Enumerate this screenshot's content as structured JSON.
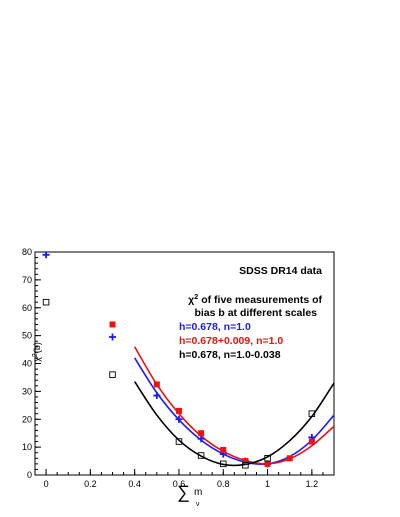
{
  "chart_data": {
    "type": "scatter",
    "title": "SDSS DR14 data",
    "subtitle_line1": "of five measurements of",
    "subtitle_chi_symbol": "χ",
    "subtitle_chi_exp": "2",
    "subtitle_line2": "bias b at different scales",
    "ylabel_main": "χ",
    "ylabel_exp": "2",
    "ylabel_tail": "(b)",
    "xlabel_sum": "∑",
    "xlabel_m": "m",
    "xlabel_nu": "ν",
    "xlim": [
      -0.05,
      1.3
    ],
    "ylim": [
      0,
      80
    ],
    "xticks": [
      "0",
      "0.2",
      "0.4",
      "0.6",
      "0.8",
      "1",
      "1.2"
    ],
    "yticks": [
      "0",
      "10",
      "20",
      "30",
      "40",
      "50",
      "60",
      "70",
      "80"
    ],
    "xtick_values": [
      0,
      0.2,
      0.4,
      0.6,
      0.8,
      1.0,
      1.2
    ],
    "ytick_values": [
      0,
      10,
      20,
      30,
      40,
      50,
      60,
      70,
      80
    ],
    "series": [
      {
        "name": "h=0.678, n=1.0",
        "color": "#1a1aff",
        "marker": "plus",
        "x": [
          0,
          0.3,
          0.5,
          0.6,
          0.7,
          0.8,
          0.9,
          1.0,
          1.2
        ],
        "y": [
          79,
          49.5,
          28.5,
          20,
          13,
          7.5,
          5,
          4,
          13.5
        ],
        "fit": [
          [
            0.4,
            42
          ],
          [
            0.5,
            29.5
          ],
          [
            0.6,
            19.8
          ],
          [
            0.7,
            12.5
          ],
          [
            0.8,
            7.5
          ],
          [
            0.9,
            4.6
          ],
          [
            1.0,
            4
          ],
          [
            1.1,
            6.6
          ],
          [
            1.2,
            12.5
          ],
          [
            1.3,
            21.5
          ]
        ]
      },
      {
        "name": "h=0.678+0.009, n=1.0",
        "color": "#ee1111",
        "marker": "square-filled",
        "x": [
          0.3,
          0.5,
          0.6,
          0.7,
          0.8,
          0.9,
          1.0,
          1.1,
          1.2
        ],
        "y": [
          54,
          32.5,
          23,
          15,
          9,
          5,
          4,
          6,
          12
        ],
        "fit": [
          [
            0.4,
            46
          ],
          [
            0.5,
            32.5
          ],
          [
            0.6,
            22
          ],
          [
            0.7,
            14
          ],
          [
            0.8,
            8.5
          ],
          [
            0.9,
            5.2
          ],
          [
            1.0,
            4
          ],
          [
            1.1,
            5.8
          ],
          [
            1.2,
            10.5
          ],
          [
            1.3,
            17.5
          ]
        ]
      },
      {
        "name": "h=0.678, n=1.0-0.038",
        "color": "#000000",
        "marker": "square-open",
        "x": [
          0,
          0.3,
          0.6,
          0.7,
          0.8,
          0.9,
          1.0,
          1.2
        ],
        "y": [
          62,
          36,
          12,
          7,
          4,
          3.5,
          6,
          22
        ],
        "fit": [
          [
            0.4,
            33.5
          ],
          [
            0.5,
            21.5
          ],
          [
            0.6,
            12.5
          ],
          [
            0.7,
            6.8
          ],
          [
            0.8,
            3.8
          ],
          [
            0.9,
            3.8
          ],
          [
            1.0,
            6.5
          ],
          [
            1.1,
            12.3
          ],
          [
            1.2,
            21
          ],
          [
            1.3,
            33
          ]
        ]
      }
    ]
  }
}
